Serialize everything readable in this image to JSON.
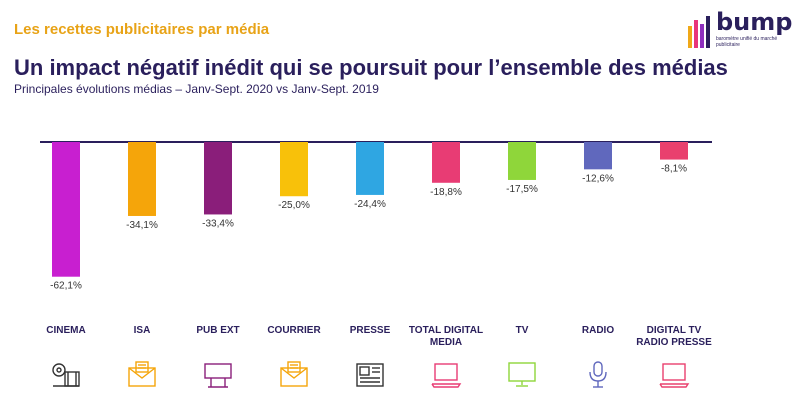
{
  "header": {
    "section_title": "Les recettes publicitaires par média",
    "headline": "Un impact négatif inédit qui se poursuit pour l’ensemble des médias",
    "subtitle": "Principales évolutions médias – Janv-Sept. 2020 vs Janv-Sept. 2019"
  },
  "logo": {
    "word": "bump",
    "tagline": "baromètre unifié du marché publicitaire",
    "bar_colors": [
      "#f0a818",
      "#e8357a",
      "#8e2fbf",
      "#2a1f5c"
    ]
  },
  "chart_data": {
    "type": "bar",
    "categories": [
      "CINEMA",
      "ISA",
      "PUB EXT",
      "COURRIER",
      "PRESSE",
      "TOTAL DIGITAL MEDIA",
      "TV",
      "RADIO",
      "DIGITAL TV RADIO PRESSE"
    ],
    "category_lines": [
      [
        "CINEMA"
      ],
      [
        "ISA"
      ],
      [
        "PUB EXT"
      ],
      [
        "COURRIER"
      ],
      [
        "PRESSE"
      ],
      [
        "TOTAL DIGITAL",
        "MEDIA"
      ],
      [
        "TV"
      ],
      [
        "RADIO"
      ],
      [
        "DIGITAL TV",
        "RADIO PRESSE"
      ]
    ],
    "values": [
      -62.1,
      -34.1,
      -33.4,
      -25.0,
      -24.4,
      -18.8,
      -17.5,
      -12.6,
      -8.1
    ],
    "value_labels": [
      "-62,1%",
      "-34,1%",
      "-33,4%",
      "-25,0%",
      "-24,4%",
      "-18,8%",
      "-17,5%",
      "-12,6%",
      "-8,1%"
    ],
    "colors": [
      "#c81fd0",
      "#f5a50a",
      "#8a1e7a",
      "#f8c10a",
      "#2fa6e2",
      "#e83c74",
      "#8fd63a",
      "#6068bd",
      "#e9406e"
    ],
    "ylim": [
      -65,
      0
    ],
    "grid": false,
    "legend": "none",
    "icons": [
      {
        "name": "film-reel-icon",
        "color": "#333333"
      },
      {
        "name": "mailbox-icon",
        "color": "#f5a50a"
      },
      {
        "name": "billboard-icon",
        "color": "#8a1e7a"
      },
      {
        "name": "letter-icon",
        "color": "#f5a50a"
      },
      {
        "name": "newspaper-icon",
        "color": "#333333"
      },
      {
        "name": "laptop-icon",
        "color": "#e83c74"
      },
      {
        "name": "tv-icon",
        "color": "#8fd63a"
      },
      {
        "name": "microphone-icon",
        "color": "#6068bd"
      },
      {
        "name": "laptop-icon",
        "color": "#e9406e"
      }
    ]
  }
}
